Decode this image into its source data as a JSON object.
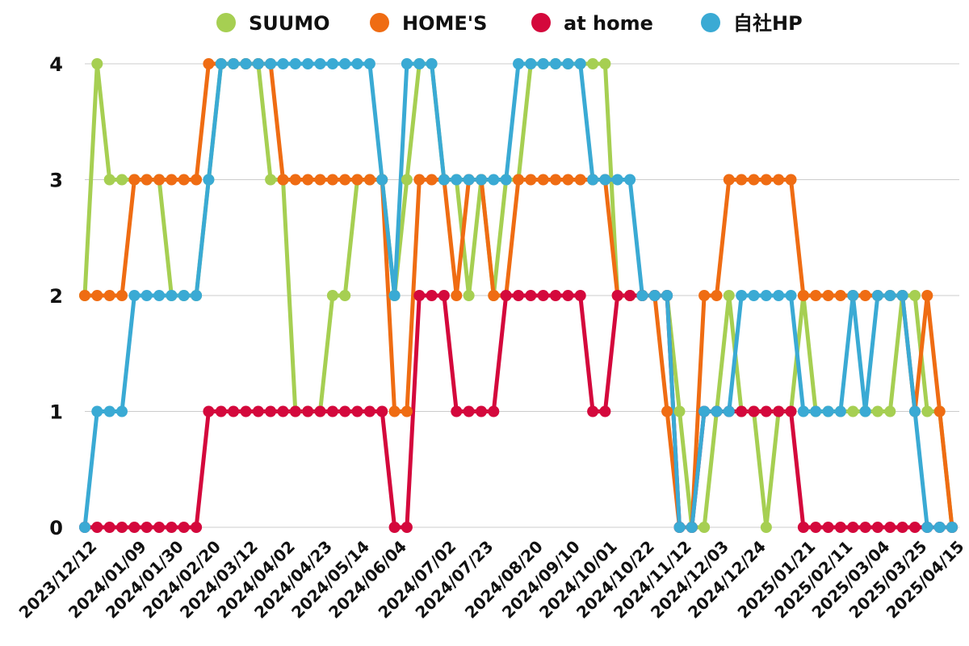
{
  "chart_data": {
    "type": "line",
    "title": "",
    "xlabel": "",
    "ylabel": "",
    "ylim": [
      0,
      4
    ],
    "y_ticks": [
      0,
      1,
      2,
      3,
      4
    ],
    "grid": "horizontal",
    "legend_position": "top",
    "x": [
      "2023/12/12",
      "2023/12/19",
      "2023/12/26",
      "2024/01/02",
      "2024/01/09",
      "2024/01/16",
      "2024/01/23",
      "2024/01/30",
      "2024/02/06",
      "2024/02/13",
      "2024/02/20",
      "2024/02/27",
      "2024/03/05",
      "2024/03/12",
      "2024/03/19",
      "2024/03/26",
      "2024/04/02",
      "2024/04/09",
      "2024/04/16",
      "2024/04/23",
      "2024/04/30",
      "2024/05/07",
      "2024/05/14",
      "2024/05/21",
      "2024/05/28",
      "2024/06/04",
      "2024/06/11",
      "2024/06/18",
      "2024/06/25",
      "2024/07/02",
      "2024/07/09",
      "2024/07/16",
      "2024/07/23",
      "2024/07/30",
      "2024/08/06",
      "2024/08/13",
      "2024/08/20",
      "2024/08/27",
      "2024/09/03",
      "2024/09/10",
      "2024/09/17",
      "2024/09/24",
      "2024/10/01",
      "2024/10/08",
      "2024/10/15",
      "2024/10/22",
      "2024/10/29",
      "2024/11/05",
      "2024/11/12",
      "2024/11/19",
      "2024/11/26",
      "2024/12/03",
      "2024/12/10",
      "2024/12/17",
      "2024/12/24",
      "2024/12/31",
      "2025/01/07",
      "2025/01/14",
      "2025/01/21",
      "2025/01/28",
      "2025/02/04",
      "2025/02/11",
      "2025/02/18",
      "2025/02/25",
      "2025/03/04",
      "2025/03/11",
      "2025/03/18",
      "2025/03/25",
      "2025/04/01",
      "2025/04/08",
      "2025/04/15"
    ],
    "tick_labels": [
      "2023/12/12",
      "2024/01/09",
      "2024/01/30",
      "2024/02/20",
      "2024/03/12",
      "2024/04/02",
      "2024/04/23",
      "2024/05/14",
      "2024/06/04",
      "2024/07/02",
      "2024/07/23",
      "2024/08/20",
      "2024/09/10",
      "2024/10/01",
      "2024/10/22",
      "2024/11/12",
      "2024/12/03",
      "2024/12/24",
      "2025/01/21",
      "2025/02/11",
      "2025/03/04",
      "2025/03/25",
      "2025/04/15"
    ],
    "series": [
      {
        "name": "SUUMO",
        "color": "#a6cf52",
        "values": [
          2,
          4,
          3,
          3,
          3,
          3,
          3,
          2,
          2,
          2,
          3,
          4,
          4,
          4,
          4,
          3,
          3,
          1,
          1,
          1,
          2,
          2,
          3,
          3,
          3,
          2,
          3,
          4,
          4,
          3,
          3,
          2,
          3,
          2,
          3,
          3,
          4,
          4,
          4,
          4,
          4,
          4,
          4,
          2,
          2,
          2,
          2,
          2,
          1,
          0,
          0,
          1,
          2,
          1,
          1,
          0,
          1,
          1,
          2,
          1,
          1,
          1,
          1,
          1,
          1,
          1,
          2,
          2,
          1,
          1,
          0
        ]
      },
      {
        "name": "HOME'S",
        "color": "#ef6c13",
        "values": [
          2,
          2,
          2,
          2,
          3,
          3,
          3,
          3,
          3,
          3,
          4,
          4,
          4,
          4,
          4,
          4,
          3,
          3,
          3,
          3,
          3,
          3,
          3,
          3,
          3,
          1,
          1,
          3,
          3,
          3,
          2,
          3,
          3,
          2,
          2,
          3,
          3,
          3,
          3,
          3,
          3,
          3,
          3,
          2,
          2,
          2,
          2,
          1,
          0,
          0,
          2,
          2,
          3,
          3,
          3,
          3,
          3,
          3,
          2,
          2,
          2,
          2,
          2,
          2,
          2,
          2,
          2,
          1,
          2,
          1,
          0
        ]
      },
      {
        "name": "at home",
        "color": "#d4083c",
        "values": [
          0,
          0,
          0,
          0,
          0,
          0,
          0,
          0,
          0,
          0,
          1,
          1,
          1,
          1,
          1,
          1,
          1,
          1,
          1,
          1,
          1,
          1,
          1,
          1,
          1,
          0,
          0,
          2,
          2,
          2,
          1,
          1,
          1,
          1,
          2,
          2,
          2,
          2,
          2,
          2,
          2,
          1,
          1,
          2,
          2,
          2,
          2,
          2,
          0,
          0,
          1,
          1,
          1,
          1,
          1,
          1,
          1,
          1,
          0,
          0,
          0,
          0,
          0,
          0,
          0,
          0,
          0,
          0,
          0,
          0,
          0
        ]
      },
      {
        "name": "自社HP",
        "color": "#3aaad4",
        "values": [
          0,
          1,
          1,
          1,
          2,
          2,
          2,
          2,
          2,
          2,
          3,
          4,
          4,
          4,
          4,
          4,
          4,
          4,
          4,
          4,
          4,
          4,
          4,
          4,
          3,
          2,
          4,
          4,
          4,
          3,
          3,
          3,
          3,
          3,
          3,
          4,
          4,
          4,
          4,
          4,
          4,
          3,
          3,
          3,
          3,
          2,
          2,
          2,
          0,
          0,
          1,
          1,
          1,
          2,
          2,
          2,
          2,
          2,
          1,
          1,
          1,
          1,
          2,
          1,
          2,
          2,
          2,
          1,
          0,
          0,
          0
        ]
      }
    ]
  }
}
